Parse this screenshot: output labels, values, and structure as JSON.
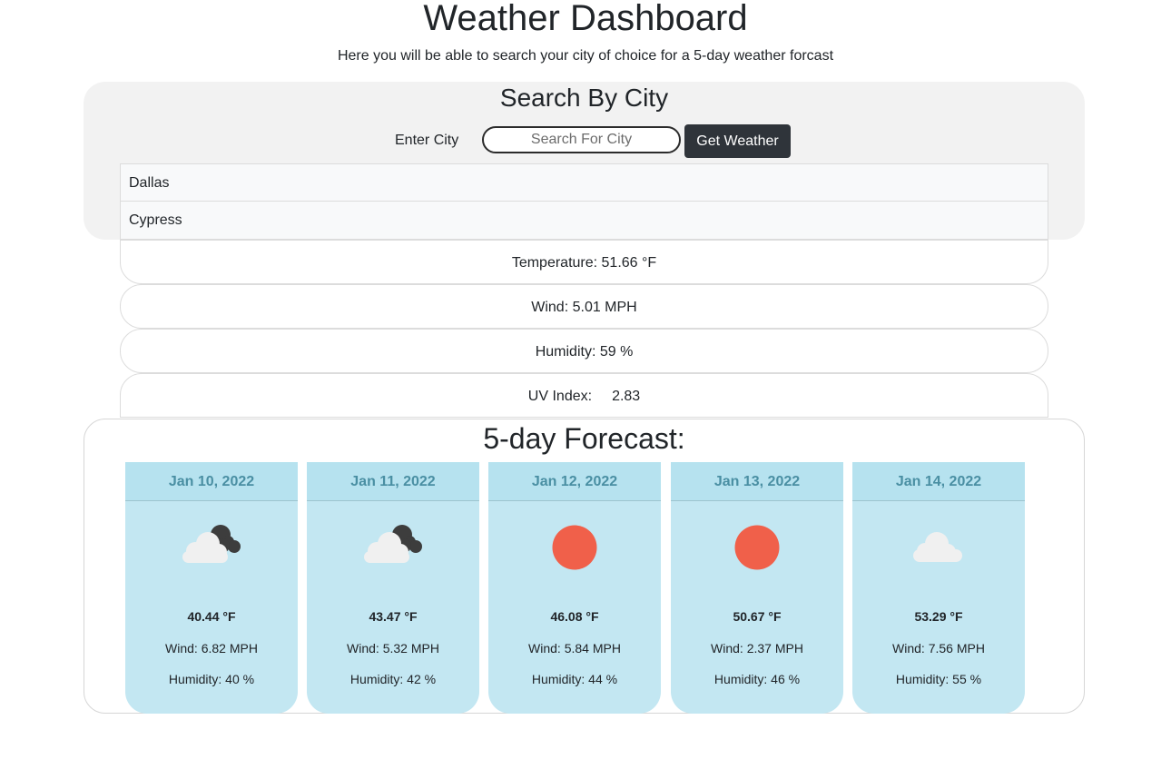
{
  "header": {
    "title": "Weather Dashboard",
    "subtitle": "Here you will be able to search your city of choice for a 5-day weather forcast"
  },
  "search": {
    "title": "Search By City",
    "label": "Enter City",
    "placeholder": "Search For City",
    "value": "",
    "button_label": "Get Weather"
  },
  "history": [
    "Dallas",
    "Cypress"
  ],
  "current": {
    "temperature": "Temperature: 51.66 °F",
    "wind": "Wind: 5.01 MPH",
    "humidity": "Humidity: 59 %",
    "uv_label": "UV Index:",
    "uv_value": "2.83"
  },
  "forecast": {
    "title": "5-day Forecast:",
    "days": [
      {
        "date": "Jan 10, 2022",
        "icon": "cloud-moon-icon",
        "temp": "40.44 °F",
        "wind": "Wind: 6.82 MPH",
        "humidity": "Humidity: 40 %"
      },
      {
        "date": "Jan 11, 2022",
        "icon": "cloud-moon-icon",
        "temp": "43.47 °F",
        "wind": "Wind: 5.32 MPH",
        "humidity": "Humidity: 42 %"
      },
      {
        "date": "Jan 12, 2022",
        "icon": "sun-icon",
        "temp": "46.08 °F",
        "wind": "Wind: 5.84 MPH",
        "humidity": "Humidity: 44 %"
      },
      {
        "date": "Jan 13, 2022",
        "icon": "sun-icon",
        "temp": "50.67 °F",
        "wind": "Wind: 2.37 MPH",
        "humidity": "Humidity: 46 %"
      },
      {
        "date": "Jan 14, 2022",
        "icon": "cloud-icon",
        "temp": "53.29 °F",
        "wind": "Wind: 7.56 MPH",
        "humidity": "Humidity: 55 %"
      }
    ]
  },
  "colors": {
    "sun": "#f0604a",
    "cloud_light": "#f0f0f0",
    "cloud_dark": "#3d3d3d",
    "card_bg": "#c3e7f2",
    "button_bg": "#2f343a"
  }
}
